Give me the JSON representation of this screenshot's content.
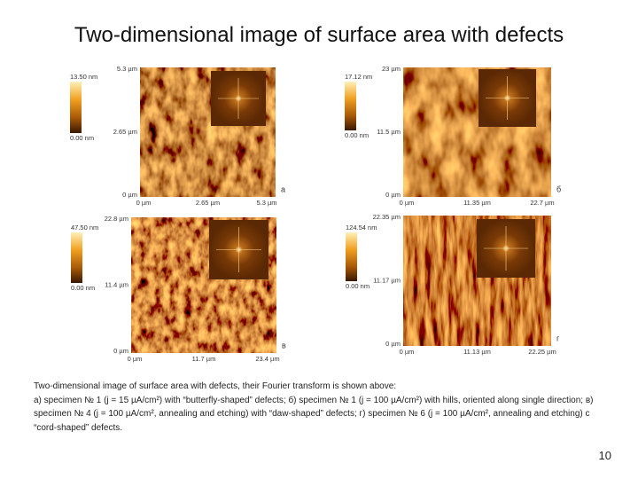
{
  "title": "Two-dimensional image of surface area with defects",
  "panels": [
    {
      "letter": "а",
      "colorbar": {
        "max": "13.50 nm",
        "min": "0.00 nm"
      },
      "y_labels": [
        "5.3 µm",
        "2.65 µm",
        "0 µm"
      ],
      "x_labels": [
        "0 µm",
        "2.65 µm",
        "5.3 µm"
      ]
    },
    {
      "letter": "б",
      "colorbar": {
        "max": "17.12 nm",
        "min": "0.00 nm"
      },
      "y_labels": [
        "23 µm",
        "11.5 µm",
        "0 µm"
      ],
      "x_labels": [
        "0 µm",
        "11.35 µm",
        "22.7 µm"
      ]
    },
    {
      "letter": "в",
      "colorbar": {
        "max": "47.50 nm",
        "min": "0.00 nm"
      },
      "y_labels": [
        "22.8 µm",
        "11.4 µm",
        "0 µm"
      ],
      "x_labels": [
        "0 µm",
        "11.7 µm",
        "23.4 µm"
      ]
    },
    {
      "letter": "г",
      "colorbar": {
        "max": "124.54 nm",
        "min": "0.00 nm"
      },
      "y_labels": [
        "22.35 µm",
        "11.17 µm",
        "0 µm"
      ],
      "x_labels": [
        "0 µm",
        "11.13 µm",
        "22.25 µm"
      ]
    }
  ],
  "caption": {
    "intro": "Two-dimensional image of surface area with defects, their Fourier transform is shown above:",
    "items": [
      "а) specimen № 1 (j = 15 µA/cm²) with “butterfly-shaped” defects;",
      "б) specimen № 1 (j = 100 µA/cm²) with hills, oriented along single direction;",
      "в) specimen № 4 (j = 100 µA/cm², annealing and etching) with “daw-shaped” defects;",
      "г) specimen № 6 (j = 100 µA/cm², annealing and etching) c “cord-shaped” defects."
    ]
  },
  "page_number": "10"
}
